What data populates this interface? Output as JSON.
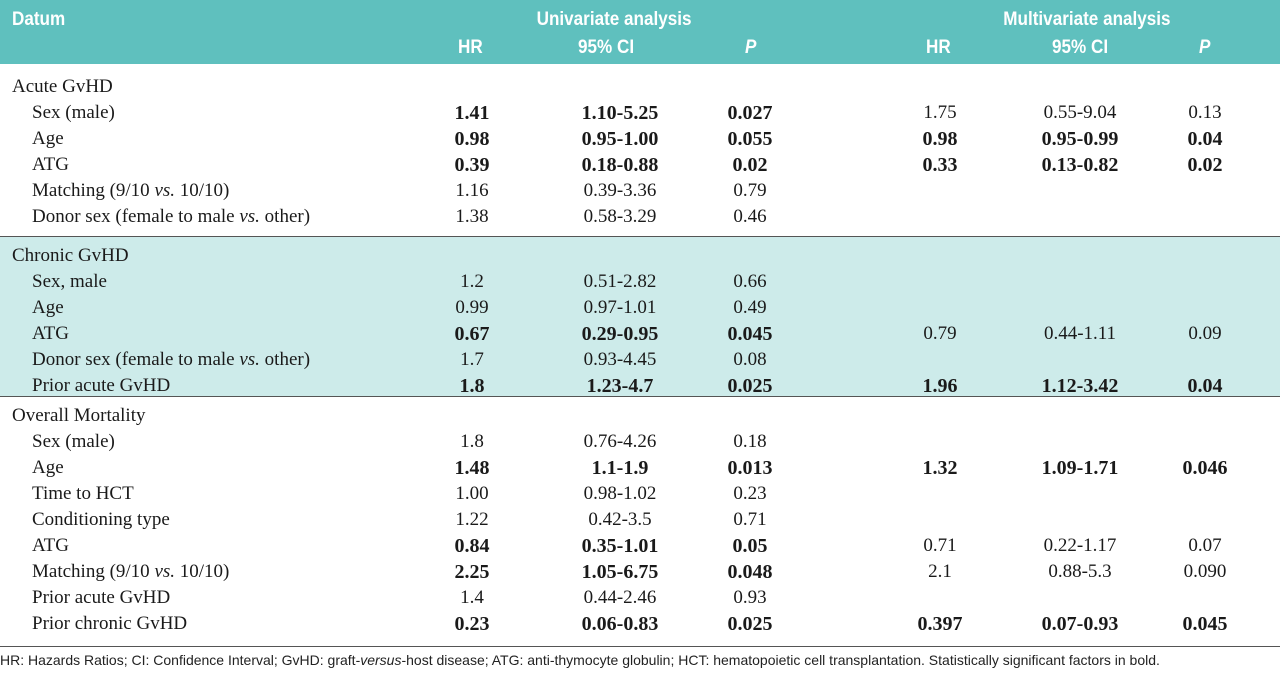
{
  "header": {
    "datum": "Datum",
    "univariate": "Univariate analysis",
    "multivariate": "Multivariate analysis",
    "hr": "HR",
    "ci": "95% CI",
    "p": "P"
  },
  "sections": [
    {
      "title": "Acute GvHD",
      "rows": [
        {
          "label": "Sex (male)",
          "u": [
            "1.41",
            "1.10-5.25",
            "0.027"
          ],
          "ub": true,
          "m": [
            "1.75",
            "0.55-9.04",
            "0.13"
          ],
          "mb": false
        },
        {
          "label": "Age",
          "u": [
            "0.98",
            "0.95-1.00",
            "0.055"
          ],
          "ub": true,
          "m": [
            "0.98",
            "0.95-0.99",
            "0.04"
          ],
          "mb": true
        },
        {
          "label": "ATG",
          "u": [
            "0.39",
            "0.18-0.88",
            "0.02"
          ],
          "ub": true,
          "m": [
            "0.33",
            "0.13-0.82",
            "0.02"
          ],
          "mb": true
        },
        {
          "label_parts": [
            "Matching (9/10 ",
            "vs.",
            " 10/10)"
          ],
          "u": [
            "1.16",
            "0.39-3.36",
            "0.79"
          ],
          "ub": false,
          "m": [
            "",
            "",
            ""
          ],
          "mb": false
        },
        {
          "label_parts": [
            "Donor sex (female to male ",
            "vs.",
            " other)"
          ],
          "u": [
            "1.38",
            "0.58-3.29",
            "0.46"
          ],
          "ub": false,
          "m": [
            "",
            "",
            ""
          ],
          "mb": false
        }
      ]
    },
    {
      "title": "Chronic GvHD",
      "rows": [
        {
          "label": "Sex, male",
          "u": [
            "1.2",
            "0.51-2.82",
            "0.66"
          ],
          "ub": false,
          "m": [
            "",
            "",
            ""
          ],
          "mb": false
        },
        {
          "label": "Age",
          "u": [
            "0.99",
            "0.97-1.01",
            "0.49"
          ],
          "ub": false,
          "m": [
            "",
            "",
            ""
          ],
          "mb": false
        },
        {
          "label": "ATG",
          "u": [
            "0.67",
            "0.29-0.95",
            "0.045"
          ],
          "ub": true,
          "m": [
            "0.79",
            "0.44-1.11",
            "0.09"
          ],
          "mb": false
        },
        {
          "label_parts": [
            "Donor sex (female to male ",
            "vs.",
            " other)"
          ],
          "u": [
            "1.7",
            "0.93-4.45",
            "0.08"
          ],
          "ub": false,
          "m": [
            "",
            "",
            ""
          ],
          "mb": false
        },
        {
          "label": "Prior acute GvHD",
          "u": [
            "1.8",
            "1.23-4.7",
            "0.025"
          ],
          "ub": true,
          "m": [
            "1.96",
            "1.12-3.42",
            "0.04"
          ],
          "mb": true
        }
      ]
    },
    {
      "title": "Overall Mortality",
      "rows": [
        {
          "label": "Sex (male)",
          "u": [
            "1.8",
            "0.76-4.26",
            "0.18"
          ],
          "ub": false,
          "m": [
            "",
            "",
            ""
          ],
          "mb": false
        },
        {
          "label": "Age",
          "u": [
            "1.48",
            "1.1-1.9",
            "0.013"
          ],
          "ub": true,
          "m": [
            "1.32",
            "1.09-1.71",
            "0.046"
          ],
          "mb": true
        },
        {
          "label": "Time to HCT",
          "u": [
            "1.00",
            "0.98-1.02",
            "0.23"
          ],
          "ub": false,
          "m": [
            "",
            "",
            ""
          ],
          "mb": false
        },
        {
          "label": "Conditioning type",
          "u": [
            "1.22",
            "0.42-3.5",
            "0.71"
          ],
          "ub": false,
          "m": [
            "",
            "",
            ""
          ],
          "mb": false
        },
        {
          "label": "ATG",
          "u": [
            "0.84",
            "0.35-1.01",
            "0.05"
          ],
          "ub": true,
          "m": [
            "0.71",
            "0.22-1.17",
            "0.07"
          ],
          "mb": false
        },
        {
          "label_parts": [
            "Matching (9/10 ",
            "vs.",
            " 10/10)"
          ],
          "u": [
            "2.25",
            "1.05-6.75",
            "0.048"
          ],
          "ub": true,
          "m": [
            "2.1",
            "0.88-5.3",
            "0.090"
          ],
          "mb": false
        },
        {
          "label": "Prior acute GvHD",
          "u": [
            "1.4",
            "0.44-2.46",
            "0.93"
          ],
          "ub": false,
          "m": [
            "",
            "",
            ""
          ],
          "mb": false
        },
        {
          "label": "Prior chronic GvHD",
          "u": [
            "0.23",
            "0.06-0.83",
            "0.025"
          ],
          "ub": true,
          "m": [
            "0.397",
            "0.07-0.93",
            "0.045"
          ],
          "mb": true
        }
      ]
    }
  ],
  "footnote": {
    "parts": [
      "HR: Hazards Ratios; CI: Confidence Interval; GvHD: graft-",
      "versus",
      "-host disease; ATG: anti-thymocyte globulin; HCT: hematopoietic cell transplantation. Statistically significant factors in bold."
    ]
  },
  "colors": {
    "header_bg": "#5fc0be",
    "shade_bg": "#cdebea"
  }
}
